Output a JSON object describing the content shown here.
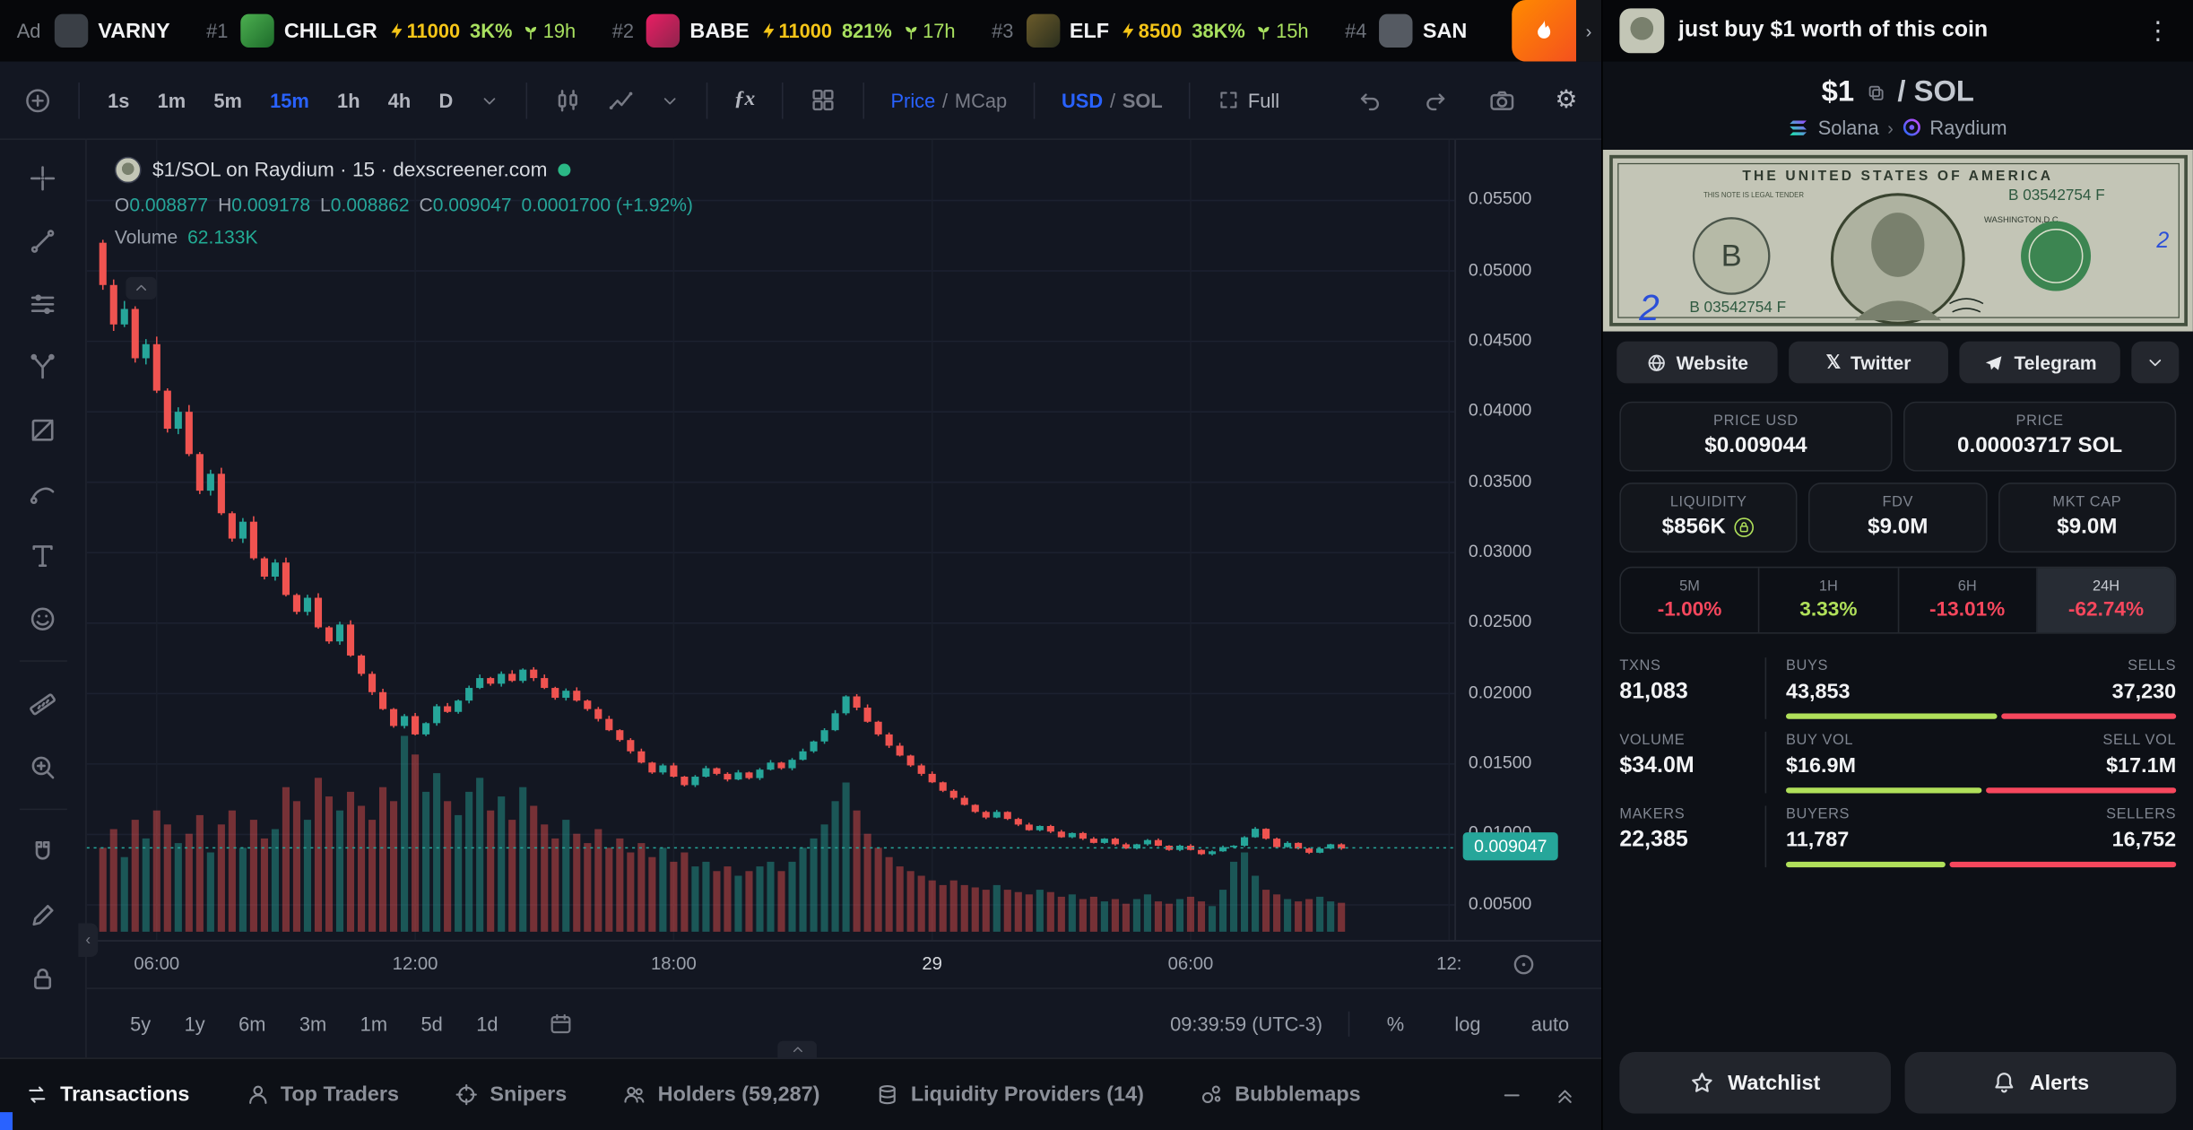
{
  "topbar": {
    "ad_label": "Ad",
    "ad_account": "VARNY",
    "tokens": [
      {
        "rank": "#1",
        "name": "CHILLGR",
        "boost": "11000",
        "change": "3K%",
        "age": "19h"
      },
      {
        "rank": "#2",
        "name": "BABE",
        "boost": "11000",
        "change": "821%",
        "age": "17h"
      },
      {
        "rank": "#3",
        "name": "ELF",
        "boost": "8500",
        "change": "38K%",
        "age": "15h"
      },
      {
        "rank": "#4",
        "name": "SAN",
        "boost": "",
        "change": "",
        "age": ""
      }
    ]
  },
  "toolbar": {
    "timeframes": [
      "1s",
      "1m",
      "5m",
      "15m",
      "1h",
      "4h",
      "D"
    ],
    "active_timeframe": "15m",
    "indicators_label": "ƒx",
    "price_label": "Price",
    "mcap_label": "MCap",
    "usd_label": "USD",
    "sol_label": "SOL",
    "full_label": "Full"
  },
  "legend": {
    "title": "$1/SOL on Raydium · 15 · dexscreener.com",
    "o_label": "O",
    "o": "0.008877",
    "h_label": "H",
    "h": "0.009178",
    "l_label": "L",
    "l": "0.008862",
    "c_label": "C",
    "c": "0.009047",
    "change": "0.0001700 (+1.92%)",
    "volume_label": "Volume",
    "volume_value": "62.133K"
  },
  "chart_data": {
    "type": "candlestick",
    "pair": "$1/SOL",
    "interval": "15m",
    "ylim": [
      0.0025,
      0.0593
    ],
    "tick_min": 0.005,
    "tick_max": 0.055,
    "tick_step": 0.005,
    "total_slots": 127,
    "candle_start_slot": 1,
    "first_open": 0.052,
    "last_price": 0.009047,
    "last_price_label": "0.009047",
    "up_color": "#26a69a",
    "down_color": "#ef5350",
    "x_labels": [
      {
        "slot": 6,
        "text": "06:00"
      },
      {
        "slot": 30,
        "text": "12:00"
      },
      {
        "slot": 54,
        "text": "18:00"
      },
      {
        "slot": 78,
        "text": "29",
        "major": true
      },
      {
        "slot": 102,
        "text": "06:00"
      },
      {
        "slot": 126,
        "text": "12:"
      }
    ],
    "closes": [
      0.049,
      0.0462,
      0.0473,
      0.0438,
      0.0448,
      0.0415,
      0.0388,
      0.04,
      0.037,
      0.0344,
      0.0356,
      0.0328,
      0.031,
      0.0322,
      0.0296,
      0.0283,
      0.0293,
      0.027,
      0.0258,
      0.0268,
      0.0247,
      0.0237,
      0.0249,
      0.0227,
      0.0214,
      0.0201,
      0.0189,
      0.0177,
      0.0184,
      0.0171,
      0.0179,
      0.0191,
      0.0187,
      0.0195,
      0.0204,
      0.0211,
      0.0207,
      0.0214,
      0.0209,
      0.0217,
      0.0211,
      0.0204,
      0.0197,
      0.0202,
      0.0195,
      0.0189,
      0.0182,
      0.0174,
      0.0167,
      0.0159,
      0.0151,
      0.0144,
      0.0149,
      0.0141,
      0.0135,
      0.0141,
      0.0147,
      0.0143,
      0.0139,
      0.0144,
      0.014,
      0.0146,
      0.0151,
      0.0147,
      0.0153,
      0.0159,
      0.0166,
      0.0174,
      0.0186,
      0.0198,
      0.019,
      0.018,
      0.0171,
      0.0163,
      0.0156,
      0.0149,
      0.0143,
      0.0137,
      0.0131,
      0.0126,
      0.0121,
      0.0116,
      0.0112,
      0.0116,
      0.0111,
      0.0107,
      0.0103,
      0.0106,
      0.0102,
      0.0098,
      0.0101,
      0.0097,
      0.0094,
      0.0097,
      0.0093,
      0.009,
      0.0093,
      0.0096,
      0.0092,
      0.0089,
      0.0092,
      0.0089,
      0.0086,
      0.0088,
      0.0091,
      0.0092,
      0.0098,
      0.0104,
      0.0097,
      0.0091,
      0.0094,
      0.009,
      0.0087,
      0.009,
      0.0093,
      0.009
    ],
    "volumes": [
      180,
      220,
      160,
      240,
      200,
      260,
      230,
      190,
      210,
      250,
      170,
      230,
      260,
      180,
      240,
      200,
      220,
      310,
      280,
      240,
      330,
      290,
      260,
      300,
      270,
      240,
      310,
      280,
      420,
      380,
      300,
      340,
      280,
      250,
      300,
      330,
      260,
      290,
      240,
      310,
      270,
      230,
      200,
      240,
      210,
      190,
      220,
      180,
      200,
      170,
      190,
      160,
      180,
      150,
      170,
      140,
      150,
      130,
      140,
      120,
      130,
      140,
      150,
      130,
      150,
      180,
      200,
      230,
      280,
      320,
      260,
      210,
      180,
      160,
      140,
      130,
      120,
      110,
      100,
      110,
      100,
      95,
      90,
      100,
      90,
      85,
      80,
      90,
      85,
      75,
      80,
      70,
      75,
      65,
      70,
      60,
      70,
      80,
      65,
      60,
      70,
      75,
      65,
      55,
      90,
      150,
      170,
      120,
      90,
      80,
      70,
      65,
      70,
      75,
      65,
      62
    ],
    "volume_unit": "K"
  },
  "chart_footer": {
    "ranges": [
      "5y",
      "1y",
      "6m",
      "3m",
      "1m",
      "5d",
      "1d"
    ],
    "clock": "09:39:59 (UTC-3)",
    "percent_label": "%",
    "log_label": "log",
    "auto_label": "auto"
  },
  "tabs": {
    "items": [
      {
        "label": "Transactions"
      },
      {
        "label": "Top Traders"
      },
      {
        "label": "Snipers"
      },
      {
        "label": "Holders (59,287)"
      },
      {
        "label": "Liquidity Providers (14)"
      },
      {
        "label": "Bubblemaps"
      }
    ]
  },
  "panel": {
    "header_title": "just buy $1 worth of this coin",
    "pair_base": "$1",
    "pair_quote": "/ SOL",
    "chain": "Solana",
    "dex": "Raydium",
    "bill": {
      "country": "THE UNITED STATES OF AMERICA",
      "legal": "THIS NOTE IS LEGAL TENDER",
      "serial": "B 03542754 F",
      "city": "WASHINGTON,D.C.",
      "seal_letter": "B",
      "ink_note": "2"
    },
    "links": {
      "website": "Website",
      "twitter": "Twitter",
      "telegram": "Telegram"
    },
    "stats": {
      "price_usd_label": "PRICE USD",
      "price_usd": "$0.009044",
      "price_sol_label": "PRICE",
      "price_sol": "0.00003717 SOL",
      "liquidity_label": "LIQUIDITY",
      "liquidity": "$856K",
      "fdv_label": "FDV",
      "fdv": "$9.0M",
      "mktcap_label": "MKT CAP",
      "mktcap": "$9.0M"
    },
    "changes": [
      {
        "label": "5M",
        "value": "-1.00%"
      },
      {
        "label": "1H",
        "value": "3.33%"
      },
      {
        "label": "6H",
        "value": "-13.01%"
      },
      {
        "label": "24H",
        "value": "-62.74%"
      }
    ],
    "activity": {
      "txns_label": "TXNS",
      "txns": "81,083",
      "buys_label": "BUYS",
      "buys": "43,853",
      "sells_label": "SELLS",
      "sells": "37,230",
      "buys_pct": 54,
      "volume_label": "VOLUME",
      "volume": "$34.0M",
      "buy_vol_label": "BUY VOL",
      "buy_vol": "$16.9M",
      "sell_vol_label": "SELL VOL",
      "sell_vol": "$17.1M",
      "buy_vol_pct": 50,
      "makers_label": "MAKERS",
      "makers": "22,385",
      "buyers_label": "BUYERS",
      "buyers": "11,787",
      "sellers_label": "SELLERS",
      "sellers": "16,752",
      "buyers_pct": 41
    },
    "watchlist_label": "Watchlist",
    "alerts_label": "Alerts"
  },
  "colors": {
    "accent_blue": "#2962ff",
    "candle_up": "#26a69a",
    "candle_down": "#ef5350",
    "lime_green": "#b0e05a",
    "red": "#f6475d",
    "boost_yellow": "#f5c518",
    "price_badge": "#26a69a"
  }
}
